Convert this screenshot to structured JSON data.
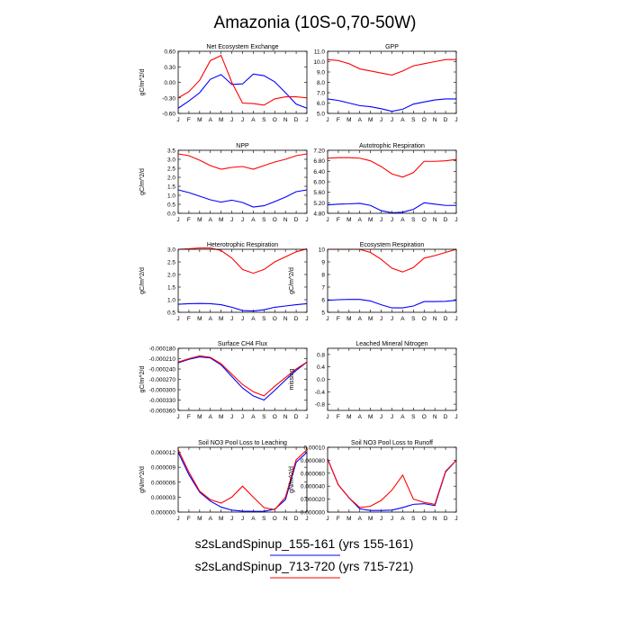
{
  "figure": {
    "title": "Amazonia (10S-0,70-50W)",
    "legend": [
      {
        "label": "s2sLandSpinup_155-161 (yrs 155-161)",
        "color": "#0000ff"
      },
      {
        "label": "s2sLandSpinup_713-720 (yrs 715-721)",
        "color": "#ff0000"
      }
    ],
    "colors": {
      "blue": "#0000ff",
      "red": "#ff0000"
    }
  },
  "chart_data": [
    {
      "type": "line",
      "title": "Net Ecosystem Exchange",
      "ylabel": "gC/m^2/d",
      "x": [
        "J",
        "F",
        "M",
        "A",
        "M",
        "J",
        "J",
        "A",
        "S",
        "O",
        "N",
        "D",
        "J"
      ],
      "ylim": [
        -0.6,
        0.6
      ],
      "yticks": [
        "0.60",
        "0.30",
        "0.00",
        "-0.30",
        "-0.60"
      ],
      "series": [
        {
          "color": "#0000ff",
          "values": [
            -0.5,
            -0.36,
            -0.2,
            0.06,
            0.15,
            -0.04,
            -0.03,
            0.16,
            0.13,
            0.01,
            -0.2,
            -0.42,
            -0.5
          ]
        },
        {
          "color": "#ff0000",
          "values": [
            -0.3,
            -0.18,
            0.04,
            0.42,
            0.52,
            0.0,
            -0.4,
            -0.41,
            -0.44,
            -0.32,
            -0.28,
            -0.28,
            -0.3
          ]
        }
      ]
    },
    {
      "type": "line",
      "title": "GPP",
      "ylabel": "",
      "x": [
        "J",
        "F",
        "M",
        "A",
        "M",
        "J",
        "J",
        "A",
        "S",
        "O",
        "N",
        "D",
        "J"
      ],
      "ylim": [
        5.0,
        11.0
      ],
      "yticks": [
        "11.0",
        "10.0",
        "9.0",
        "8.0",
        "7.0",
        "6.0",
        "5.0"
      ],
      "series": [
        {
          "color": "#0000ff",
          "values": [
            6.4,
            6.25,
            6.0,
            5.75,
            5.65,
            5.45,
            5.2,
            5.4,
            5.9,
            6.1,
            6.3,
            6.4,
            6.4
          ]
        },
        {
          "color": "#ff0000",
          "values": [
            10.2,
            10.1,
            9.8,
            9.3,
            9.1,
            8.9,
            8.7,
            9.1,
            9.6,
            9.8,
            10.0,
            10.2,
            10.2
          ]
        }
      ]
    },
    {
      "type": "line",
      "title": "NPP",
      "ylabel": "gC/m^2/d",
      "x": [
        "J",
        "F",
        "M",
        "A",
        "M",
        "J",
        "J",
        "A",
        "S",
        "O",
        "N",
        "D",
        "J"
      ],
      "ylim": [
        0.0,
        3.5
      ],
      "yticks": [
        "3.5",
        "3.0",
        "2.5",
        "2.0",
        "1.5",
        "1.0",
        "0.5",
        "0.0"
      ],
      "series": [
        {
          "color": "#0000ff",
          "values": [
            1.3,
            1.15,
            0.95,
            0.75,
            0.62,
            0.73,
            0.6,
            0.35,
            0.42,
            0.65,
            0.9,
            1.2,
            1.3
          ]
        },
        {
          "color": "#ff0000",
          "values": [
            3.3,
            3.2,
            2.95,
            2.65,
            2.45,
            2.55,
            2.6,
            2.45,
            2.65,
            2.85,
            3.0,
            3.2,
            3.3
          ]
        }
      ]
    },
    {
      "type": "line",
      "title": "Autotrophic Respiration",
      "ylabel": "",
      "x": [
        "J",
        "F",
        "M",
        "A",
        "M",
        "J",
        "J",
        "A",
        "S",
        "O",
        "N",
        "D",
        "J"
      ],
      "ylim": [
        4.8,
        7.2
      ],
      "yticks": [
        "7.20",
        "6.80",
        "6.40",
        "6.00",
        "5.60",
        "5.20",
        "4.80"
      ],
      "series": [
        {
          "color": "#0000ff",
          "values": [
            5.12,
            5.15,
            5.16,
            5.18,
            5.1,
            4.9,
            4.82,
            4.84,
            4.95,
            5.2,
            5.15,
            5.1,
            5.1
          ]
        },
        {
          "color": "#ff0000",
          "values": [
            6.9,
            6.92,
            6.92,
            6.9,
            6.8,
            6.58,
            6.3,
            6.18,
            6.35,
            6.78,
            6.78,
            6.8,
            6.85
          ]
        }
      ]
    },
    {
      "type": "line",
      "title": "Heterotrophic Respiration",
      "ylabel": "gC/m^2/d",
      "x": [
        "J",
        "F",
        "M",
        "A",
        "M",
        "J",
        "J",
        "A",
        "S",
        "O",
        "N",
        "D",
        "J"
      ],
      "ylim": [
        0.5,
        3.0
      ],
      "yticks": [
        "3.0",
        "2.5",
        "2.0",
        "1.5",
        "1.0",
        "0.5"
      ],
      "series": [
        {
          "color": "#0000ff",
          "values": [
            0.82,
            0.84,
            0.85,
            0.84,
            0.8,
            0.7,
            0.57,
            0.55,
            0.6,
            0.7,
            0.75,
            0.8,
            0.84
          ]
        },
        {
          "color": "#ff0000",
          "values": [
            3.0,
            3.02,
            3.05,
            3.05,
            2.95,
            2.65,
            2.2,
            2.05,
            2.2,
            2.5,
            2.7,
            2.9,
            3.02
          ]
        }
      ]
    },
    {
      "type": "line",
      "title": "Ecosystem Respiration",
      "ylabel": "gC/m^2/d",
      "x": [
        "J",
        "F",
        "M",
        "A",
        "M",
        "J",
        "J",
        "A",
        "S",
        "O",
        "N",
        "D",
        "J"
      ],
      "ylim": [
        5,
        10
      ],
      "yticks": [
        "10",
        "9",
        "8",
        "7",
        "6",
        "5"
      ],
      "series": [
        {
          "color": "#0000ff",
          "values": [
            5.95,
            6.0,
            6.02,
            6.02,
            5.9,
            5.6,
            5.35,
            5.35,
            5.5,
            5.85,
            5.85,
            5.87,
            5.95
          ]
        },
        {
          "color": "#ff0000",
          "values": [
            10.0,
            10.0,
            10.0,
            10.0,
            9.75,
            9.2,
            8.5,
            8.2,
            8.55,
            9.3,
            9.5,
            9.75,
            10.0
          ]
        }
      ]
    },
    {
      "type": "line",
      "title": "Surface CH4 Flux",
      "ylabel": "gC/m^2/d",
      "x": [
        "J",
        "F",
        "M",
        "A",
        "M",
        "J",
        "J",
        "A",
        "S",
        "O",
        "N",
        "D",
        "J"
      ],
      "ylim": [
        -0.00036,
        -0.00018
      ],
      "yticks": [
        "-0.000180",
        "-0.000210",
        "-0.000240",
        "-0.000270",
        "-0.000300",
        "-0.000330",
        "-0.000360"
      ],
      "series": [
        {
          "color": "#0000ff",
          "values": [
            -0.000222,
            -0.000212,
            -0.000205,
            -0.000208,
            -0.000228,
            -0.000262,
            -0.000295,
            -0.000318,
            -0.00033,
            -0.000302,
            -0.000272,
            -0.000244,
            -0.00022
          ]
        },
        {
          "color": "#ff0000",
          "values": [
            -0.00022,
            -0.00021,
            -0.000202,
            -0.000206,
            -0.000225,
            -0.000255,
            -0.000285,
            -0.000306,
            -0.000318,
            -0.00029,
            -0.000265,
            -0.00024,
            -0.00022
          ]
        }
      ]
    },
    {
      "type": "line",
      "title": "Leached Mineral Nitrogen",
      "ylabel": "missing",
      "x": [
        "J",
        "F",
        "M",
        "A",
        "M",
        "J",
        "J",
        "A",
        "S",
        "O",
        "N",
        "D",
        "J"
      ],
      "ylim": [
        -1.0,
        1.0
      ],
      "yticks": [
        "0.8",
        "0.4",
        "0.0",
        "-0.4",
        "-0.8"
      ],
      "series": []
    },
    {
      "type": "line",
      "title": "Soil NO3 Pool Loss to Leaching",
      "ylabel": "gN/m^2/d",
      "x": [
        "J",
        "F",
        "M",
        "A",
        "M",
        "J",
        "J",
        "A",
        "S",
        "O",
        "N",
        "D",
        "J"
      ],
      "ylim": [
        0,
        1.3e-05
      ],
      "yticks": [
        "0.000012",
        "0.000009",
        "0.000006",
        "0.000003",
        "0.000000"
      ],
      "series": [
        {
          "color": "#0000ff",
          "values": [
            1.2e-05,
            7.5e-06,
            4e-06,
            2.2e-06,
            1e-06,
            4e-07,
            2e-07,
            1.5e-07,
            1.5e-07,
            6e-07,
            2.5e-06,
            1e-05,
            1.2e-05
          ]
        },
        {
          "color": "#ff0000",
          "values": [
            1.25e-05,
            8e-06,
            4.2e-06,
            2.5e-06,
            1.8e-06,
            3e-06,
            5.2e-06,
            3e-06,
            9e-07,
            5e-07,
            3e-06,
            1.05e-05,
            1.25e-05
          ]
        }
      ]
    },
    {
      "type": "line",
      "title": "Soil NO3 Pool Loss to Runoff",
      "ylabel": "gN/m^2/d",
      "x": [
        "J",
        "F",
        "M",
        "A",
        "M",
        "J",
        "J",
        "A",
        "S",
        "O",
        "N",
        "D",
        "J"
      ],
      "ylim": [
        0,
        0.0001
      ],
      "yticks": [
        "0.00010",
        "0.000080",
        "0.000060",
        "0.000040",
        "0.000020",
        "0.000000"
      ],
      "series": [
        {
          "color": "#0000ff",
          "values": [
            8.2e-05,
            4.2e-05,
            2.2e-05,
            5e-06,
            2.5e-06,
            2.5e-06,
            3e-06,
            7e-06,
            1.2e-05,
            1.3e-05,
            1e-05,
            6.2e-05,
            8e-05
          ]
        },
        {
          "color": "#ff0000",
          "values": [
            8.2e-05,
            4.2e-05,
            2.2e-05,
            7e-06,
            9e-06,
            1.8e-05,
            3.4e-05,
            5.7e-05,
            2e-05,
            1.5e-05,
            1.2e-05,
            6.3e-05,
            8e-05
          ]
        }
      ]
    }
  ]
}
